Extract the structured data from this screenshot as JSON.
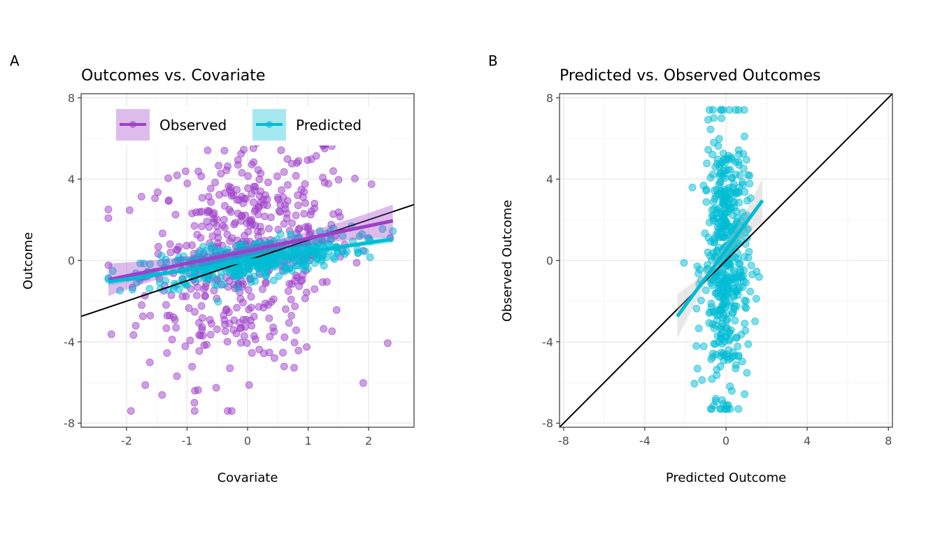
{
  "figure": {
    "panel_a_tag": "A",
    "panel_b_tag": "B"
  },
  "colors": {
    "observed": "#9e3fc9",
    "predicted": "#00bcd4",
    "reference_line": "#000000",
    "ci_band_grey": "#bdbdbd",
    "grid": "#ebebeb"
  },
  "chart_data": [
    {
      "type": "scatter",
      "title": "Outcomes vs. Covariate",
      "xlabel": "Covariate",
      "ylabel": "Outcome",
      "xlim": [
        -2.75,
        2.75
      ],
      "ylim": [
        -8.2,
        8.2
      ],
      "xticks": [
        -2,
        -1,
        0,
        1,
        2
      ],
      "xtick_labels": [
        "-2",
        "-1",
        "0",
        "1",
        "2"
      ],
      "yticks": [
        -8,
        -4,
        0,
        4,
        8
      ],
      "ytick_labels": [
        "-8",
        "-4",
        "0",
        "4",
        "8"
      ],
      "grid": true,
      "legend": {
        "position": "top",
        "entries": [
          "Observed",
          "Predicted"
        ]
      },
      "series": [
        {
          "name": "Observed",
          "color": "#9e3fc9",
          "n_points": 500,
          "x_mean": 0,
          "x_sd": 0.85,
          "fit_intercept": 0.47,
          "fit_slope": 0.62,
          "residual_sd": 3.0,
          "x_range": [
            -2.3,
            2.4
          ]
        },
        {
          "name": "Predicted",
          "color": "#00bcd4",
          "n_points": 500,
          "x_mean": 0,
          "x_sd": 0.85,
          "fit_intercept": 0.0,
          "fit_slope": 0.45,
          "residual_sd": 0.45,
          "x_range": [
            -2.3,
            2.4
          ]
        }
      ],
      "fit_lines": [
        {
          "series": "Observed",
          "x": [
            -2.3,
            2.4
          ],
          "y": [
            -0.95,
            1.95
          ],
          "ci_half_width_ends": 0.8,
          "ci_half_width_mid": 0.25
        },
        {
          "series": "Predicted",
          "x": [
            -2.3,
            2.4
          ],
          "y": [
            -1.05,
            1.05
          ],
          "ci_half_width_ends": 0.18,
          "ci_half_width_mid": 0.05
        }
      ],
      "reference_line": {
        "intercept": 0.0,
        "slope": 1.0
      }
    },
    {
      "type": "scatter",
      "title": "Predicted vs. Observed Outcomes",
      "xlabel": "Predicted Outcome",
      "ylabel": "Observed Outcome",
      "xlim": [
        -8.2,
        8.2
      ],
      "ylim": [
        -8.2,
        8.2
      ],
      "xticks": [
        -8,
        -4,
        0,
        4,
        8
      ],
      "xtick_labels": [
        "-8",
        "-4",
        "0",
        "4",
        "8"
      ],
      "yticks": [
        -8,
        -4,
        0,
        4,
        8
      ],
      "ytick_labels": [
        "-8",
        "-4",
        "0",
        "4",
        "8"
      ],
      "grid": true,
      "series": [
        {
          "name": "Predicted",
          "color": "#00bcd4",
          "n_points": 500,
          "x_mean": 0,
          "x_sd": 0.55,
          "y_mean": 0,
          "y_sd": 3.2
        }
      ],
      "fit_lines": [
        {
          "x": [
            -2.4,
            1.8
          ],
          "y": [
            -2.75,
            2.95
          ],
          "ci_half_width_ends": 1.1,
          "ci_half_width_mid": 0.3
        }
      ],
      "reference_line": {
        "intercept": 0.0,
        "slope": 1.0
      }
    }
  ]
}
